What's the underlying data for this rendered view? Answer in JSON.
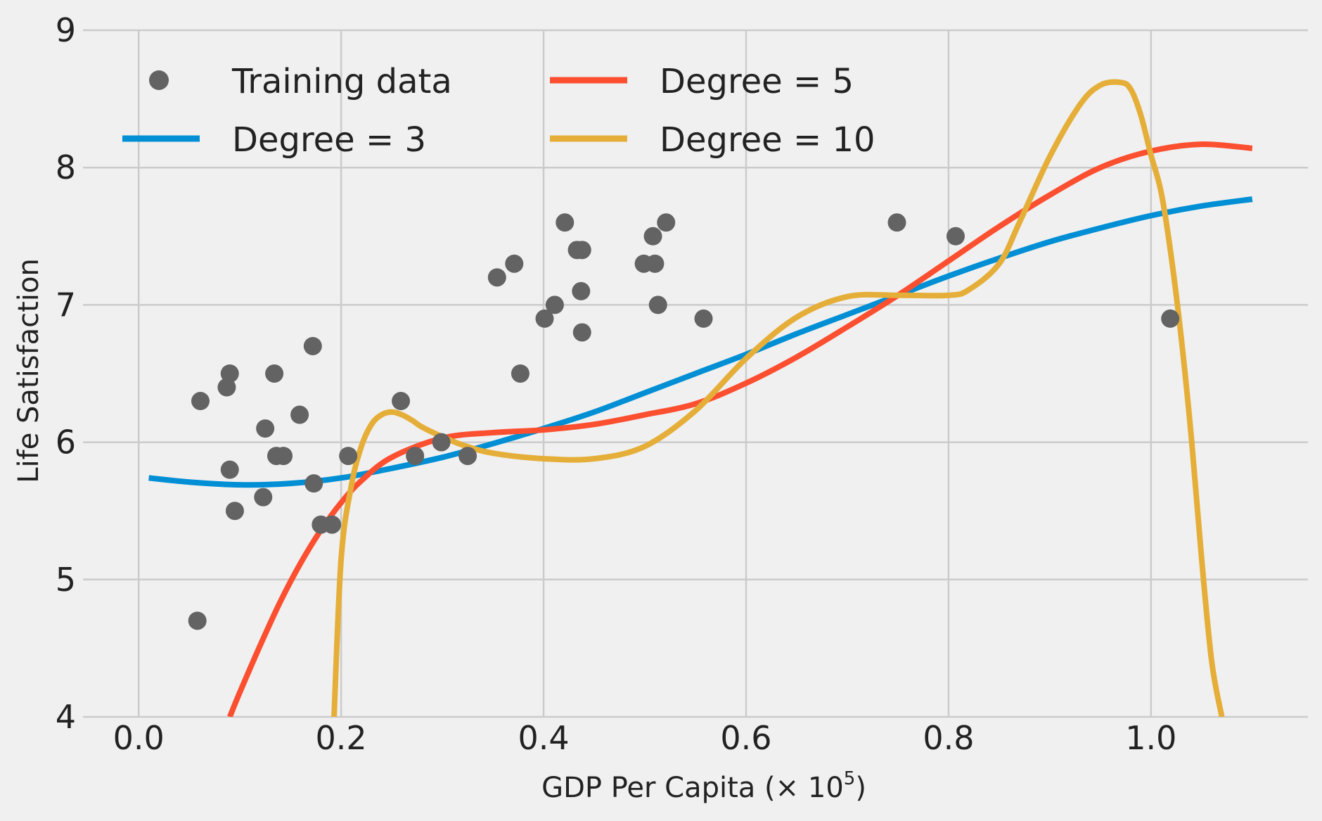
{
  "chart_data": {
    "type": "scatter",
    "xlabel": "GDP Per Capita (× 10",
    "xlabel_superscript": "5",
    "xlabel_suffix": ")",
    "ylabel": "Life Satisfaction",
    "xlim": [
      -0.055,
      1.155
    ],
    "ylim": [
      4,
      9
    ],
    "xticks": [
      0.0,
      0.2,
      0.4,
      0.6,
      0.8,
      1.0
    ],
    "xtick_labels": [
      "0.0",
      "0.2",
      "0.4",
      "0.6",
      "0.8",
      "1.0"
    ],
    "yticks": [
      4,
      5,
      6,
      7,
      8,
      9
    ],
    "ytick_labels": [
      "4",
      "5",
      "6",
      "7",
      "8",
      "9"
    ],
    "grid": true,
    "legend_position": "top-left",
    "legend_columns": 2,
    "background_color": "#f0f0f0",
    "scatter": {
      "name": "Training data",
      "color": "#636363",
      "points": [
        {
          "x": 0.058,
          "y": 4.7
        },
        {
          "x": 0.061,
          "y": 6.3
        },
        {
          "x": 0.087,
          "y": 6.4
        },
        {
          "x": 0.09,
          "y": 6.5
        },
        {
          "x": 0.09,
          "y": 5.8
        },
        {
          "x": 0.095,
          "y": 5.5
        },
        {
          "x": 0.123,
          "y": 5.6
        },
        {
          "x": 0.125,
          "y": 6.1
        },
        {
          "x": 0.134,
          "y": 6.5
        },
        {
          "x": 0.136,
          "y": 5.9
        },
        {
          "x": 0.143,
          "y": 5.9
        },
        {
          "x": 0.159,
          "y": 6.2
        },
        {
          "x": 0.172,
          "y": 6.7
        },
        {
          "x": 0.173,
          "y": 5.7
        },
        {
          "x": 0.18,
          "y": 5.4
        },
        {
          "x": 0.191,
          "y": 5.4
        },
        {
          "x": 0.207,
          "y": 5.9
        },
        {
          "x": 0.259,
          "y": 6.3
        },
        {
          "x": 0.273,
          "y": 5.9
        },
        {
          "x": 0.299,
          "y": 6.0
        },
        {
          "x": 0.325,
          "y": 5.9
        },
        {
          "x": 0.354,
          "y": 7.2
        },
        {
          "x": 0.371,
          "y": 7.3
        },
        {
          "x": 0.377,
          "y": 6.5
        },
        {
          "x": 0.401,
          "y": 6.9
        },
        {
          "x": 0.411,
          "y": 7.0
        },
        {
          "x": 0.421,
          "y": 7.6
        },
        {
          "x": 0.433,
          "y": 7.4
        },
        {
          "x": 0.438,
          "y": 7.4
        },
        {
          "x": 0.437,
          "y": 7.1
        },
        {
          "x": 0.438,
          "y": 6.8
        },
        {
          "x": 0.499,
          "y": 7.3
        },
        {
          "x": 0.508,
          "y": 7.5
        },
        {
          "x": 0.51,
          "y": 7.3
        },
        {
          "x": 0.513,
          "y": 7.0
        },
        {
          "x": 0.521,
          "y": 7.6
        },
        {
          "x": 0.558,
          "y": 6.9
        },
        {
          "x": 0.749,
          "y": 7.6
        },
        {
          "x": 0.807,
          "y": 7.5
        },
        {
          "x": 1.019,
          "y": 6.9
        }
      ]
    },
    "series": [
      {
        "name": "Degree = 3",
        "color": "#008fd5",
        "x": [
          0.01,
          0.05,
          0.1,
          0.15,
          0.2,
          0.25,
          0.3,
          0.35,
          0.4,
          0.45,
          0.5,
          0.55,
          0.6,
          0.65,
          0.7,
          0.75,
          0.8,
          0.85,
          0.9,
          0.95,
          1.0,
          1.05,
          1.1
        ],
        "y": [
          5.74,
          5.71,
          5.69,
          5.7,
          5.74,
          5.81,
          5.89,
          5.99,
          6.1,
          6.22,
          6.36,
          6.5,
          6.64,
          6.79,
          6.93,
          7.07,
          7.21,
          7.34,
          7.46,
          7.56,
          7.65,
          7.72,
          7.77
        ]
      },
      {
        "name": "Degree = 5",
        "color": "#fc4f30",
        "x": [
          0.09,
          0.1,
          0.12,
          0.14,
          0.16,
          0.18,
          0.2,
          0.22,
          0.25,
          0.3,
          0.35,
          0.4,
          0.45,
          0.5,
          0.55,
          0.6,
          0.65,
          0.7,
          0.75,
          0.8,
          0.85,
          0.9,
          0.95,
          1.0,
          1.05,
          1.1
        ],
        "y": [
          4.0,
          4.18,
          4.52,
          4.84,
          5.12,
          5.36,
          5.56,
          5.72,
          5.89,
          6.03,
          6.07,
          6.09,
          6.13,
          6.2,
          6.28,
          6.43,
          6.62,
          6.84,
          7.07,
          7.32,
          7.57,
          7.8,
          8.0,
          8.12,
          8.17,
          8.14
        ]
      },
      {
        "name": "Degree = 10",
        "color": "#e5ae38",
        "x": [
          0.193,
          0.2,
          0.21,
          0.22,
          0.23,
          0.24,
          0.25,
          0.26,
          0.27,
          0.28,
          0.3,
          0.32,
          0.35,
          0.4,
          0.45,
          0.5,
          0.55,
          0.6,
          0.65,
          0.7,
          0.75,
          0.8,
          0.82,
          0.85,
          0.87,
          0.9,
          0.93,
          0.95,
          0.97,
          0.98,
          0.99,
          1.0,
          1.01,
          1.02,
          1.03,
          1.04,
          1.05,
          1.06,
          1.07
        ],
        "y": [
          4.0,
          5.15,
          5.68,
          5.97,
          6.13,
          6.2,
          6.22,
          6.2,
          6.16,
          6.11,
          6.04,
          5.98,
          5.92,
          5.88,
          5.88,
          5.97,
          6.23,
          6.61,
          6.91,
          7.06,
          7.07,
          7.07,
          7.11,
          7.3,
          7.6,
          8.08,
          8.46,
          8.6,
          8.62,
          8.57,
          8.38,
          8.09,
          7.82,
          7.35,
          6.75,
          6.02,
          5.15,
          4.4,
          4.0
        ]
      }
    ]
  }
}
